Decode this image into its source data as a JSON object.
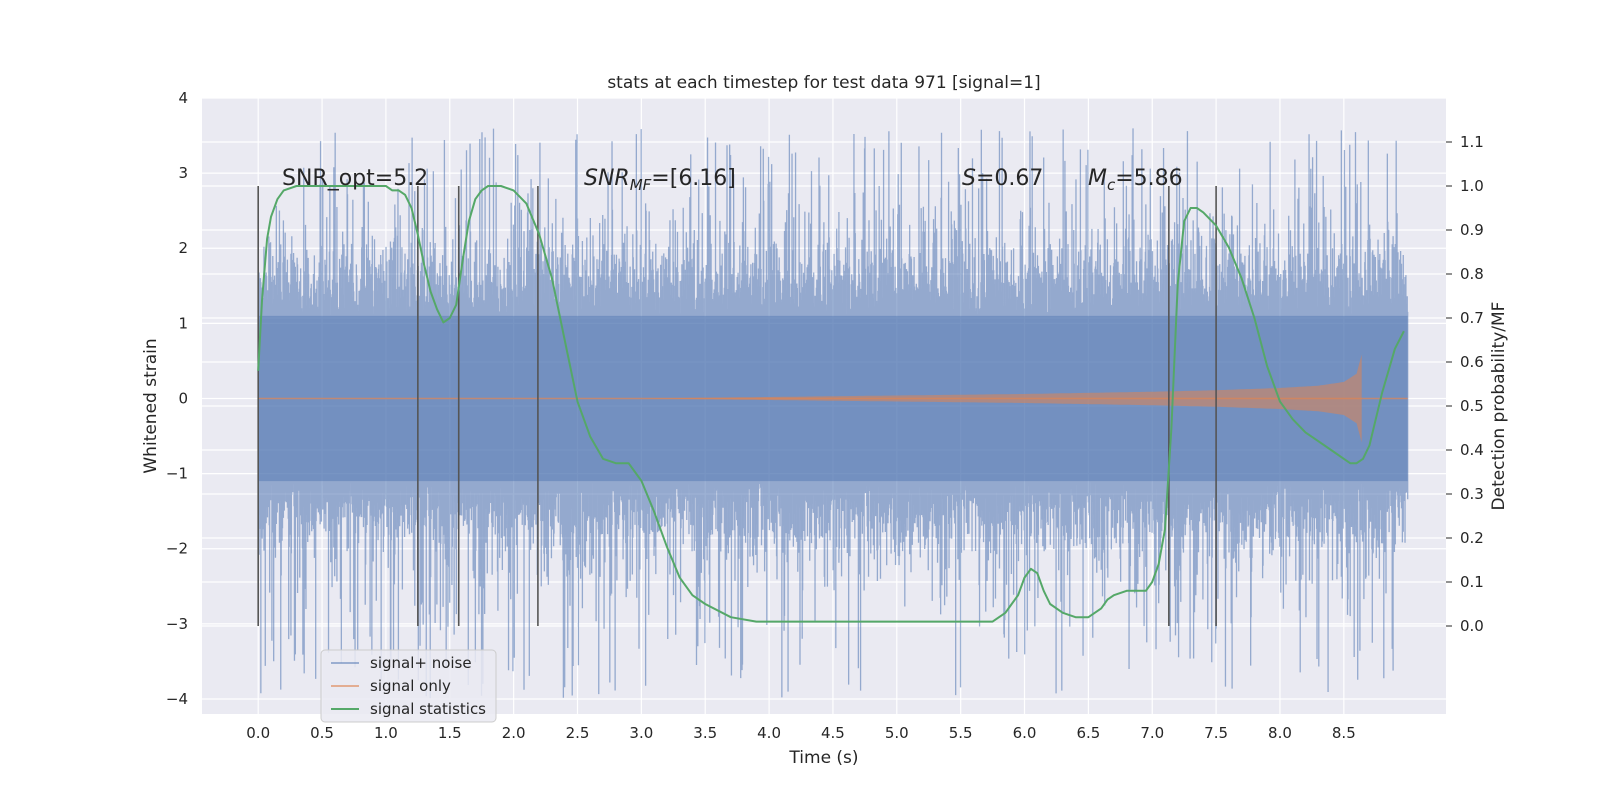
{
  "chart_data": {
    "type": "line",
    "title": "stats at each timestep for test data 971 [signal=1]",
    "xlabel": "Time (s)",
    "ylabel": "Whitened strain",
    "ylabel_right": "Detection probability/MF",
    "xlim": [
      -0.44,
      9.3
    ],
    "ylim": [
      -4.2,
      4.0
    ],
    "ylim_right": [
      -0.2,
      1.2
    ],
    "x_ticks": [
      "0.0",
      "0.5",
      "1.0",
      "1.5",
      "2.0",
      "2.5",
      "3.0",
      "3.5",
      "4.0",
      "4.5",
      "5.0",
      "5.5",
      "6.0",
      "6.5",
      "7.0",
      "7.5",
      "8.0",
      "8.5"
    ],
    "y_ticks": [
      "4",
      "3",
      "2",
      "1",
      "0",
      "−1",
      "−2",
      "−3",
      "−4"
    ],
    "y_right_ticks": [
      "0.0",
      "0.1",
      "0.2",
      "0.3",
      "0.4",
      "0.5",
      "0.6",
      "0.7",
      "0.8",
      "0.9",
      "1.0",
      "1.1"
    ],
    "grid": true,
    "legend_position": "lower-left",
    "annotations": {
      "snr_opt": "SNR_opt=5.2",
      "snr_mf_main": "SNR",
      "snr_mf_sub": "MF",
      "snr_mf_value": "=[6.16]",
      "s_main": "S",
      "s_value": "=0.67",
      "mc_main": "M",
      "mc_sub": "c",
      "mc_value": "=5.86"
    },
    "vertical_lines_x": [
      0.0,
      1.25,
      1.57,
      2.19,
      7.13,
      7.5
    ],
    "series": [
      {
        "name": "signal+ noise",
        "color": "#4c72b0",
        "t_range": [
          0.0,
          9.0
        ],
        "typical_amplitude": [
          -1.4,
          1.6
        ],
        "peak_range": [
          -4.0,
          3.6
        ]
      },
      {
        "name": "signal only",
        "color": "#dd8452",
        "t_range": [
          0.0,
          8.65
        ],
        "envelope": {
          "t": [
            0.0,
            3.0,
            4.0,
            5.0,
            6.0,
            7.0,
            7.5,
            8.0,
            8.3,
            8.5,
            8.6,
            8.65
          ],
          "amp": [
            0.0,
            0.0,
            0.02,
            0.04,
            0.06,
            0.09,
            0.11,
            0.14,
            0.17,
            0.22,
            0.33,
            0.65
          ]
        }
      },
      {
        "name": "signal statistics",
        "color": "#55a868",
        "axis": "right",
        "x": [
          0.0,
          0.03,
          0.07,
          0.1,
          0.15,
          0.2,
          0.3,
          0.5,
          0.8,
          1.0,
          1.05,
          1.1,
          1.15,
          1.2,
          1.25,
          1.3,
          1.35,
          1.4,
          1.45,
          1.5,
          1.55,
          1.6,
          1.65,
          1.7,
          1.75,
          1.8,
          1.9,
          2.0,
          2.1,
          2.2,
          2.3,
          2.4,
          2.5,
          2.6,
          2.7,
          2.8,
          2.85,
          2.9,
          3.0,
          3.1,
          3.2,
          3.3,
          3.4,
          3.5,
          3.7,
          3.9,
          4.0,
          4.2,
          4.4,
          4.6,
          4.8,
          5.0,
          5.2,
          5.4,
          5.6,
          5.7,
          5.75,
          5.8,
          5.85,
          5.9,
          5.95,
          6.0,
          6.05,
          6.1,
          6.15,
          6.2,
          6.3,
          6.4,
          6.45,
          6.5,
          6.55,
          6.6,
          6.65,
          6.7,
          6.8,
          6.85,
          6.9,
          6.95,
          7.0,
          7.05,
          7.1,
          7.15,
          7.2,
          7.25,
          7.3,
          7.35,
          7.4,
          7.5,
          7.6,
          7.7,
          7.8,
          7.9,
          8.0,
          8.1,
          8.2,
          8.3,
          8.4,
          8.5,
          8.55,
          8.6,
          8.65,
          8.7,
          8.8,
          8.9,
          8.97
        ],
        "values": [
          0.58,
          0.74,
          0.88,
          0.93,
          0.97,
          0.99,
          1.0,
          1.0,
          1.0,
          1.0,
          0.99,
          0.99,
          0.98,
          0.95,
          0.89,
          0.82,
          0.76,
          0.72,
          0.69,
          0.7,
          0.73,
          0.83,
          0.92,
          0.97,
          0.99,
          1.0,
          1.0,
          0.99,
          0.96,
          0.89,
          0.79,
          0.65,
          0.51,
          0.43,
          0.38,
          0.37,
          0.37,
          0.37,
          0.33,
          0.26,
          0.18,
          0.11,
          0.07,
          0.05,
          0.02,
          0.01,
          0.01,
          0.01,
          0.01,
          0.01,
          0.01,
          0.01,
          0.01,
          0.01,
          0.01,
          0.01,
          0.01,
          0.02,
          0.03,
          0.05,
          0.07,
          0.11,
          0.13,
          0.12,
          0.08,
          0.05,
          0.03,
          0.02,
          0.02,
          0.02,
          0.03,
          0.04,
          0.06,
          0.07,
          0.08,
          0.08,
          0.08,
          0.08,
          0.1,
          0.14,
          0.22,
          0.45,
          0.78,
          0.92,
          0.95,
          0.95,
          0.94,
          0.91,
          0.86,
          0.79,
          0.7,
          0.59,
          0.51,
          0.47,
          0.44,
          0.42,
          0.4,
          0.38,
          0.37,
          0.37,
          0.38,
          0.41,
          0.53,
          0.63,
          0.67
        ]
      }
    ]
  }
}
